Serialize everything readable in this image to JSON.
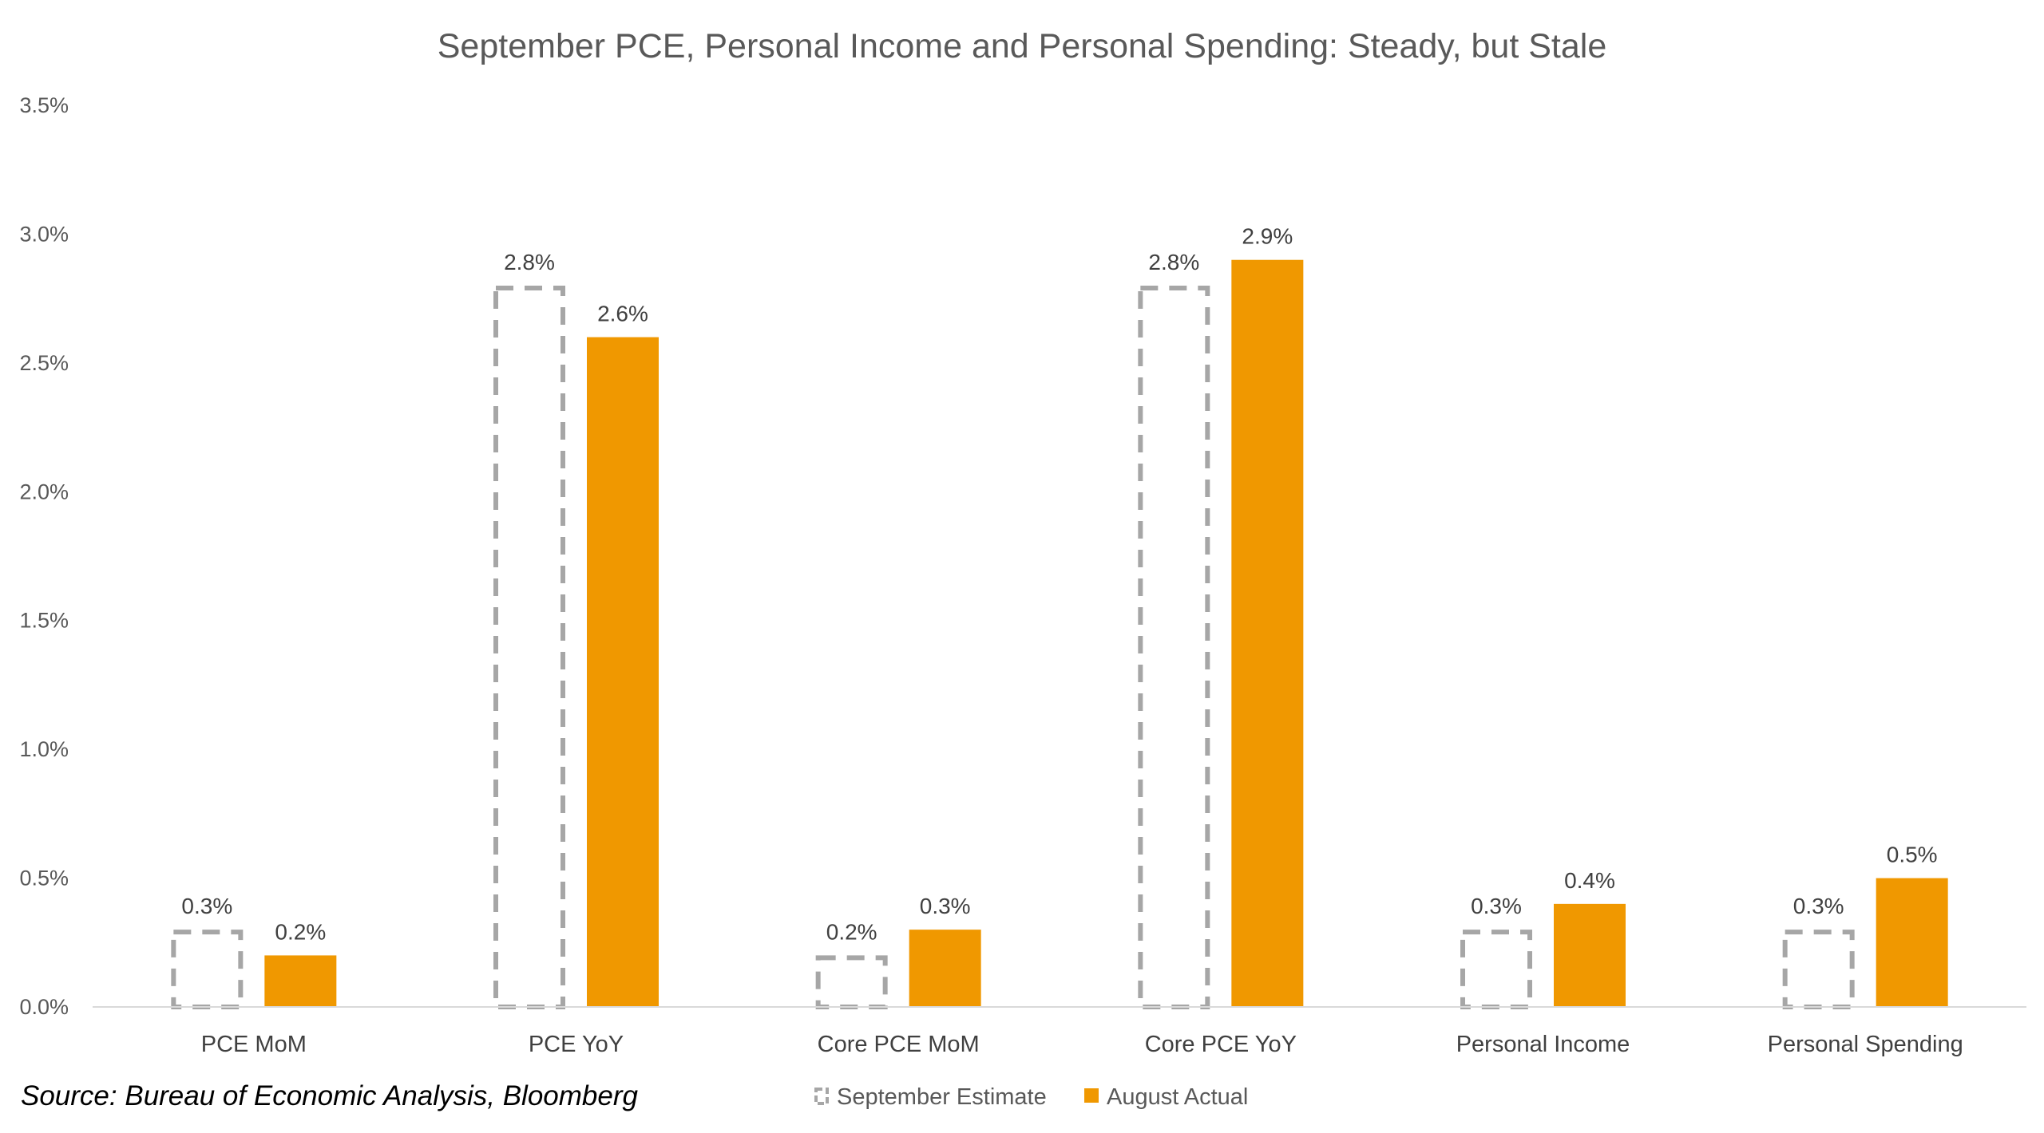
{
  "chart_data": {
    "type": "bar",
    "title": "September PCE, Personal Income and Personal Spending: Steady, but Stale",
    "categories": [
      "PCE MoM",
      "PCE YoY",
      "Core PCE MoM",
      "Core PCE YoY",
      "Personal Income",
      "Personal Spending"
    ],
    "series": [
      {
        "name": "September Estimate",
        "style": "dashed-outline",
        "color": "#a6a6a6",
        "values": [
          0.3,
          2.8,
          0.2,
          2.8,
          0.3,
          0.3
        ],
        "labels": [
          "0.3%",
          "2.8%",
          "0.2%",
          "2.8%",
          "0.3%",
          "0.3%"
        ]
      },
      {
        "name": "August Actual",
        "style": "solid",
        "color": "#f09800",
        "values": [
          0.2,
          2.6,
          0.3,
          2.9,
          0.4,
          0.5
        ],
        "labels": [
          "0.2%",
          "2.6%",
          "0.3%",
          "2.9%",
          "0.4%",
          "0.5%"
        ]
      }
    ],
    "ylim": [
      0,
      3.5
    ],
    "yticks": [
      0,
      0.5,
      1.0,
      1.5,
      2.0,
      2.5,
      3.0,
      3.5
    ],
    "ytick_labels": [
      "0.0%",
      "0.5%",
      "1.0%",
      "1.5%",
      "2.0%",
      "2.5%",
      "3.0%",
      "3.5%"
    ],
    "xlabel": "",
    "ylabel": "",
    "grid": false,
    "legend_position": "bottom-center"
  },
  "source": "Source: Bureau of Economic Analysis, Bloomberg"
}
